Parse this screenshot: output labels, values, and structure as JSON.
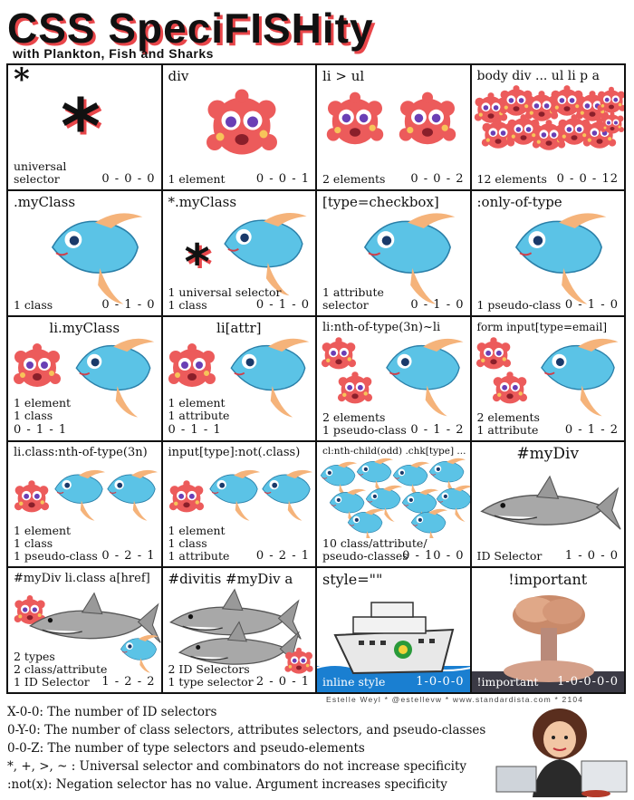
{
  "header": {
    "title": "CSS SpeciFISHity",
    "subtitle": "with Plankton, Fish and Sharks"
  },
  "cells": [
    {
      "selector": "*",
      "lines": [
        "universal",
        "selector"
      ],
      "score": "0 - 0 - 0",
      "figure": "star"
    },
    {
      "selector": "div",
      "lines": [
        "1 element"
      ],
      "score": "0 - 0 - 1",
      "figure": "plankton-1"
    },
    {
      "selector": "li > ul",
      "lines": [
        "2 elements"
      ],
      "score": "0 - 0 - 2",
      "figure": "plankton-2"
    },
    {
      "selector": "body div ... ul li p a",
      "lines": [
        "12 elements"
      ],
      "score": "0 - 0 - 12",
      "figure": "plankton-12"
    },
    {
      "selector": ".myClass",
      "lines": [
        "1 class"
      ],
      "score": "0 - 1 - 0",
      "figure": "fish"
    },
    {
      "selector": "*.myClass",
      "lines": [
        "1 universal selector",
        "1 class"
      ],
      "score": "0 - 1 - 0",
      "figure": "star-fish"
    },
    {
      "selector": "[type=checkbox]",
      "lines": [
        "1 attribute",
        "selector"
      ],
      "score": "0 - 1 - 0",
      "figure": "fish"
    },
    {
      "selector": ":only-of-type",
      "lines": [
        "1 pseudo-class"
      ],
      "score": "0 - 1 - 0",
      "figure": "fish"
    },
    {
      "selector": "li.myClass",
      "lines": [
        "1 element",
        "1 class"
      ],
      "score": "0 - 1 - 1",
      "figure": "plankton-fish"
    },
    {
      "selector": "li[attr]",
      "lines": [
        "1 element",
        "1 attribute"
      ],
      "score": "0 - 1 - 1",
      "figure": "plankton-fish"
    },
    {
      "selector": "li:nth-of-type(3n)~li",
      "lines": [
        "2 elements",
        "1 pseudo-class"
      ],
      "score": "0 - 1 - 2",
      "figure": "2plankton-fish"
    },
    {
      "selector": "form input[type=email]",
      "lines": [
        "2 elements",
        "1 attribute"
      ],
      "score": "0 - 1 - 2",
      "figure": "2plankton-fish"
    },
    {
      "selector": "li.class:nth-of-type(3n)",
      "lines": [
        "1 element",
        "1 class",
        "1 pseudo-class"
      ],
      "score": "0 - 2 - 1",
      "figure": "plankton-2fish"
    },
    {
      "selector": "input[type]:not(.class)",
      "lines": [
        "1 element",
        "1 class",
        "1 attribute"
      ],
      "score": "0 - 2 - 1",
      "figure": "plankton-2fish"
    },
    {
      "selector": "cl:nth-child(odd) .chk[type] ...",
      "lines": [
        "10 class/attribute/",
        "pseudo-classes"
      ],
      "score": "0 - 10 - 0",
      "figure": "school"
    },
    {
      "selector": "#myDiv",
      "lines": [
        "ID Selector"
      ],
      "score": "1 - 0 - 0",
      "figure": "shark"
    },
    {
      "selector": "#myDiv li.class a[href]",
      "lines": [
        "2 types",
        "2 class/attribute",
        "1 ID Selector"
      ],
      "score": "1 - 2 - 2",
      "figure": "shark-mix"
    },
    {
      "selector": "#divitis #myDiv a",
      "lines": [
        "2 ID Selectors",
        "1 type selector"
      ],
      "score": "2 - 0 - 1",
      "figure": "2sharks"
    },
    {
      "selector": "style=\"\"",
      "lines": [
        "inline style"
      ],
      "score": "1-0-0-0",
      "figure": "ship"
    },
    {
      "selector": "!important",
      "lines": [
        "!important"
      ],
      "score": "1-0-0-0-0",
      "figure": "nuke"
    }
  ],
  "credit": "Estelle Weyl * @estellevw * www.standardista.com * 2104",
  "legend": [
    "X-0-0: The number of ID selectors",
    "0-Y-0: The number of class selectors, attributes selectors, and pseudo-classes",
    "0-0-Z: The number of type selectors and pseudo-elements",
    "*, +, >, ~ : Universal selector and combinators do not increase specificity",
    ":not(x): Negation selector has no value. Argument increases specificity"
  ],
  "colors": {
    "accent": "#e8464a",
    "plankton": "#ec5b5b",
    "fish": "#5bc3e6",
    "shark": "#9a9a9a",
    "sea": "#1a7fd1"
  }
}
